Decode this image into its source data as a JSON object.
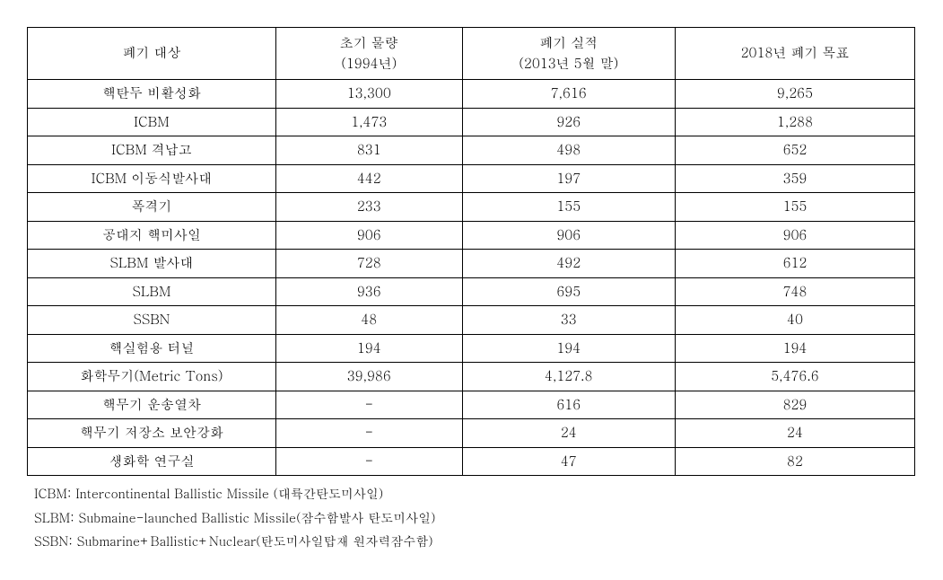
{
  "table": {
    "columns": [
      {
        "line1": "폐기 대상",
        "line2": null
      },
      {
        "line1": "초기 물량",
        "line2": "(1994년)"
      },
      {
        "line1": "폐기 실적",
        "line2": "(2013년 5월 말)"
      },
      {
        "line1": "2018년 폐기 목표",
        "line2": null
      }
    ],
    "rows": [
      [
        "핵탄두 비활성화",
        "13,300",
        "7,616",
        "9,265"
      ],
      [
        "ICBM",
        "1,473",
        "926",
        "1,288"
      ],
      [
        "ICBM 격납고",
        "831",
        "498",
        "652"
      ],
      [
        "ICBM 이동식발사대",
        "442",
        "197",
        "359"
      ],
      [
        "폭격기",
        "233",
        "155",
        "155"
      ],
      [
        "공대지 핵미사일",
        "906",
        "906",
        "906"
      ],
      [
        "SLBM 발사대",
        "728",
        "492",
        "612"
      ],
      [
        "SLBM",
        "936",
        "695",
        "748"
      ],
      [
        "SSBN",
        "48",
        "33",
        "40"
      ],
      [
        "핵실험용 터널",
        "194",
        "194",
        "194"
      ],
      [
        "화학무기(Metric Tons)",
        "39,986",
        "4,127.8",
        "5,476.6"
      ],
      [
        "핵무기 운송열차",
        "-",
        "616",
        "829"
      ],
      [
        "핵무기 저장소 보안강화",
        "-",
        "24",
        "24"
      ],
      [
        "생화학 연구실",
        "-",
        "47",
        "82"
      ]
    ],
    "styling": {
      "border_color": "#000000",
      "background_color": "#ffffff",
      "text_color": "#000000",
      "font_size": 15,
      "header_font_size": 15,
      "cell_align": "center",
      "col_widths_pct": [
        28,
        21,
        24,
        27
      ]
    }
  },
  "footnotes": [
    "ICBM: Intercontinental Ballistic Missile (대륙간탄도미사일)",
    "SLBM: Submaine-launched Ballistic Missile(잠수함발사 탄도미사일)",
    "SSBN: Submarine+Ballistic+Nuclear(탄도미사일탑재 원자력잠수함)"
  ]
}
